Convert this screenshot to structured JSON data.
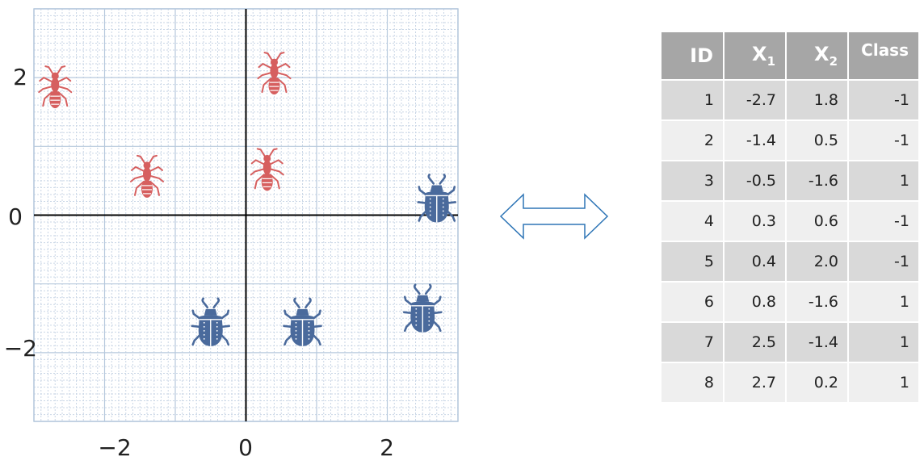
{
  "plot": {
    "x_ticks": [
      "−2",
      "0",
      "2"
    ],
    "y_ticks": [
      "2",
      "0",
      "−2"
    ],
    "xlim": [
      -3,
      3
    ],
    "ylim": [
      -3,
      3
    ],
    "grid": true,
    "colors": {
      "ant": "#d65f5f",
      "beetle": "#4a6a9c",
      "grid_major": "#b7c9dd",
      "grid_minor": "#c9d6e6"
    },
    "ants": [
      {
        "x": -2.7,
        "y": 1.8
      },
      {
        "x": -1.4,
        "y": 0.5
      },
      {
        "x": 0.3,
        "y": 0.6
      },
      {
        "x": 0.4,
        "y": 2.0
      }
    ],
    "beetles": [
      {
        "x": -0.5,
        "y": -1.6
      },
      {
        "x": 0.8,
        "y": -1.6
      },
      {
        "x": 2.5,
        "y": -1.4
      },
      {
        "x": 2.7,
        "y": 0.2
      }
    ]
  },
  "arrow": {
    "icon": "double-arrow-icon",
    "color": "#2e75b6"
  },
  "table": {
    "headers": {
      "id": "ID",
      "x1_main": "X",
      "x1_sub": "1",
      "x2_main": "X",
      "x2_sub": "2",
      "class": "Class"
    },
    "rows": [
      {
        "id": "1",
        "x1": "-2.7",
        "x2": "1.8",
        "class": "-1"
      },
      {
        "id": "2",
        "x1": "-1.4",
        "x2": "0.5",
        "class": "-1"
      },
      {
        "id": "3",
        "x1": "-0.5",
        "x2": "-1.6",
        "class": "1"
      },
      {
        "id": "4",
        "x1": "0.3",
        "x2": "0.6",
        "class": "-1"
      },
      {
        "id": "5",
        "x1": "0.4",
        "x2": "2.0",
        "class": "-1"
      },
      {
        "id": "6",
        "x1": "0.8",
        "x2": "-1.6",
        "class": "1"
      },
      {
        "id": "7",
        "x1": "2.5",
        "x2": "-1.4",
        "class": "1"
      },
      {
        "id": "8",
        "x1": "2.7",
        "x2": "0.2",
        "class": "1"
      }
    ]
  }
}
